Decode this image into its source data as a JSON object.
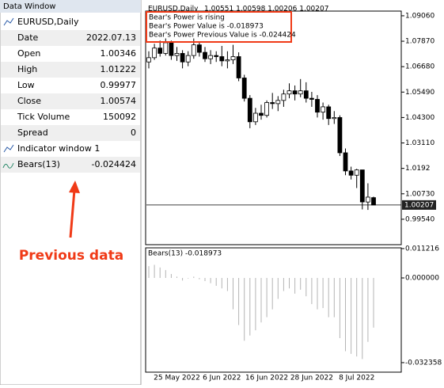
{
  "data_window": {
    "title": "Data Window",
    "symbol": "EURUSD,Daily",
    "rows": [
      [
        "Date",
        "2022.07.13"
      ],
      [
        "Open",
        "1.00346"
      ],
      [
        "High",
        "1.01222"
      ],
      [
        "Low",
        "0.99977"
      ],
      [
        "Close",
        "1.00574"
      ],
      [
        "Tick Volume",
        "150092"
      ],
      [
        "Spread",
        "0"
      ]
    ],
    "indicator_window": "Indicator window 1",
    "indicator_row": [
      "Bears(13)",
      "-0.024424"
    ]
  },
  "annotation": "Previous data",
  "chart_data": [
    {
      "type": "candlestick",
      "title": "EURUSD,Daily",
      "subtitle": "1.00551 1.00598 1.00206 1.00207",
      "comments": [
        "Bear's Power is rising",
        "Bear's Power Value is -0.018973",
        "Bear's Power Previous Value is -0.024424"
      ],
      "categories": [
        null,
        null,
        null,
        null,
        null,
        "25 May 2022",
        null,
        null,
        null,
        null,
        null,
        null,
        null,
        "6 Jun 2022",
        null,
        null,
        null,
        null,
        null,
        null,
        null,
        "16 Jun 2022",
        null,
        null,
        null,
        null,
        null,
        null,
        null,
        "28 Jun 2022",
        null,
        null,
        null,
        null,
        null,
        null,
        null,
        "8 Jul 2022",
        null,
        null,
        null
      ],
      "open": [
        1.069,
        1.071,
        1.0755,
        1.073,
        1.078,
        1.072,
        1.073,
        1.069,
        1.072,
        1.077,
        1.0735,
        1.0705,
        1.072,
        1.0715,
        1.0695,
        1.07,
        1.0715,
        1.0615,
        1.052,
        1.041,
        1.045,
        1.044,
        1.05,
        1.0495,
        1.051,
        1.054,
        1.0555,
        1.054,
        1.0555,
        1.052,
        1.0515,
        1.0455,
        1.048,
        1.0425,
        1.043,
        1.0265,
        1.018,
        1.016,
        1.0185,
        1.00346,
        1.00551
      ],
      "high": [
        1.074,
        1.0775,
        1.079,
        1.08,
        1.079,
        1.076,
        1.0745,
        1.074,
        1.08,
        1.0785,
        1.076,
        1.0745,
        1.074,
        1.0765,
        1.074,
        1.077,
        1.0735,
        1.063,
        1.0535,
        1.0475,
        1.049,
        1.051,
        1.0545,
        1.053,
        1.056,
        1.059,
        1.058,
        1.061,
        1.0595,
        1.055,
        1.0535,
        1.05,
        1.049,
        1.046,
        1.044,
        1.0285,
        1.02,
        1.019,
        1.0185,
        1.01222,
        1.00598
      ],
      "low": [
        1.066,
        1.07,
        1.0715,
        1.072,
        1.07,
        1.0695,
        1.066,
        1.067,
        1.0705,
        1.0715,
        1.069,
        1.068,
        1.069,
        1.067,
        1.066,
        1.068,
        1.06,
        1.0505,
        1.038,
        1.0395,
        1.042,
        1.043,
        1.047,
        1.046,
        1.048,
        1.052,
        1.051,
        1.0525,
        1.05,
        1.048,
        1.043,
        1.042,
        1.0395,
        1.04,
        1.025,
        1.016,
        1.014,
        1.01,
        1.0,
        0.99977,
        1.00206
      ],
      "close": [
        1.071,
        1.0755,
        1.073,
        1.078,
        1.072,
        1.073,
        1.069,
        1.072,
        1.077,
        1.0735,
        1.0705,
        1.072,
        1.0715,
        1.0695,
        1.07,
        1.0715,
        1.0615,
        1.052,
        1.041,
        1.045,
        1.044,
        1.05,
        1.0495,
        1.051,
        1.054,
        1.0555,
        1.054,
        1.0555,
        1.052,
        1.0515,
        1.0455,
        1.048,
        1.0425,
        1.043,
        1.0265,
        1.018,
        1.016,
        1.0185,
        1.0035,
        1.00574,
        1.00207
      ],
      "current_price": {
        "value": 1.00207,
        "label": "1.00207"
      },
      "ylim": [
        0.9835,
        1.0928
      ],
      "yticks": [
        {
          "value": 1.0906,
          "label": "1.09060"
        },
        {
          "value": 1.0787,
          "label": "1.07870"
        },
        {
          "value": 1.0668,
          "label": "1.06680"
        },
        {
          "value": 1.0549,
          "label": "1.05490"
        },
        {
          "value": 1.043,
          "label": "1.04300"
        },
        {
          "value": 1.0311,
          "label": "1.03110"
        },
        1.0192,
        {
          "value": 1.0073,
          "label": "1.00730"
        },
        {
          "value": 0.9954,
          "label": "0.99540"
        }
      ]
    },
    {
      "type": "bar",
      "title": "Bears(13) -0.018973",
      "color": "#b4b4b4",
      "values": [
        0.0045,
        0.005,
        0.004,
        0.003,
        0.0015,
        0.0005,
        -0.001,
        -0.0002,
        0.0005,
        -0.0005,
        -0.0012,
        -0.002,
        -0.003,
        -0.004,
        -0.005,
        -0.012,
        -0.018,
        -0.024,
        -0.022,
        -0.02,
        -0.017,
        -0.015,
        -0.012,
        -0.008,
        -0.005,
        -0.004,
        -0.006,
        -0.0045,
        -0.007,
        -0.01,
        -0.012,
        -0.0115,
        -0.015,
        -0.015,
        -0.023,
        -0.028,
        -0.029,
        -0.03,
        -0.031,
        -0.024424,
        -0.018973
      ],
      "ylim": [
        -0.036,
        0.0115
      ],
      "yticks": [
        0.011216,
        {
          "value": 0,
          "label": "0.000000"
        },
        -0.032358
      ]
    }
  ]
}
